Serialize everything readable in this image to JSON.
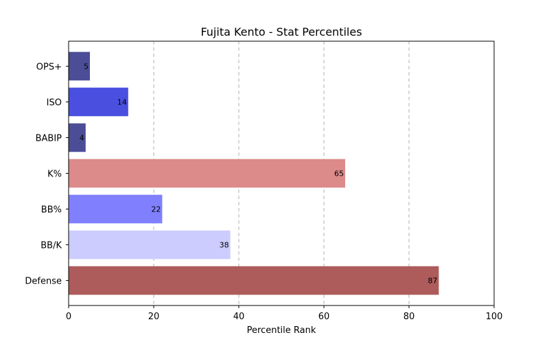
{
  "chart_data": {
    "type": "bar",
    "orientation": "horizontal",
    "title": "Fujita Kento - Stat Percentiles",
    "xlabel": "Percentile Rank",
    "ylabel": "",
    "xlim": [
      0,
      100
    ],
    "xticks": [
      "0",
      "20",
      "40",
      "60",
      "80",
      "100"
    ],
    "categories": [
      "OPS+",
      "ISO",
      "BABIP",
      "K%",
      "BB%",
      "BB/K",
      "Defense"
    ],
    "values": [
      5,
      14,
      4,
      65,
      22,
      38,
      87
    ],
    "colors": [
      "#4b4e96",
      "#4a4fe0",
      "#4b4e96",
      "#dc8a8a",
      "#8080ff",
      "#ccccff",
      "#ad5b5b"
    ],
    "grid": "x-dashed",
    "legend": "none"
  }
}
